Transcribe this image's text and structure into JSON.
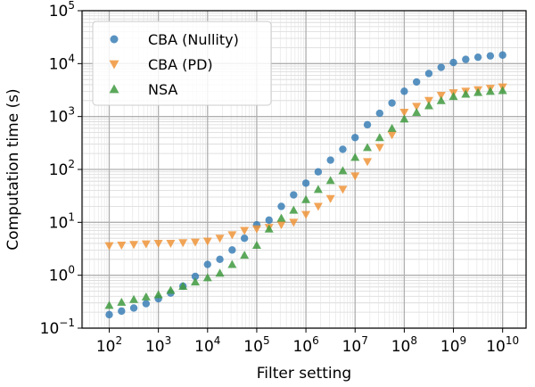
{
  "chart_data": {
    "type": "scatter",
    "title": "",
    "xlabel": "Filter setting",
    "ylabel": "Computation time (s)",
    "xscale": "log",
    "yscale": "log",
    "xlim": [
      28,
      30000000000
    ],
    "ylim": [
      0.1,
      100000
    ],
    "grid": true,
    "legend_position": "top-left",
    "x_ticks": [
      {
        "base": "10",
        "exp": "2",
        "value": 100
      },
      {
        "base": "10",
        "exp": "3",
        "value": 1000
      },
      {
        "base": "10",
        "exp": "4",
        "value": 10000
      },
      {
        "base": "10",
        "exp": "5",
        "value": 100000
      },
      {
        "base": "10",
        "exp": "6",
        "value": 1000000
      },
      {
        "base": "10",
        "exp": "7",
        "value": 10000000
      },
      {
        "base": "10",
        "exp": "8",
        "value": 100000000
      },
      {
        "base": "10",
        "exp": "9",
        "value": 1000000000
      },
      {
        "base": "10",
        "exp": "10",
        "value": 10000000000
      }
    ],
    "y_ticks": [
      {
        "base": "10",
        "exp": "−1",
        "value": 0.1
      },
      {
        "base": "10",
        "exp": "0",
        "value": 1
      },
      {
        "base": "10",
        "exp": "1",
        "value": 10
      },
      {
        "base": "10",
        "exp": "2",
        "value": 100
      },
      {
        "base": "10",
        "exp": "3",
        "value": 1000
      },
      {
        "base": "10",
        "exp": "4",
        "value": 10000
      },
      {
        "base": "10",
        "exp": "5",
        "value": 100000
      }
    ],
    "x": [
      100,
      178,
      316,
      562,
      1000,
      1778,
      3162,
      5623,
      10000,
      17783,
      31623,
      56234,
      100000,
      177828,
      316228,
      562341,
      1000000,
      1778279,
      3162278,
      5623413,
      10000000,
      17782794,
      31622777,
      56234133,
      100000000,
      177827941,
      316227766,
      562341325,
      1000000000,
      1778279410,
      3162277660,
      5623413252,
      10000000000
    ],
    "series": [
      {
        "name": "CBA (Nullity)",
        "color": "#3b7fb6",
        "marker": "circle",
        "values": [
          0.18,
          0.21,
          0.24,
          0.29,
          0.36,
          0.46,
          0.62,
          0.95,
          1.6,
          2.0,
          3.0,
          5.0,
          9.0,
          11.0,
          20.0,
          33.0,
          55.0,
          90.0,
          150.0,
          240.0,
          400.0,
          700.0,
          1150.0,
          1800.0,
          3000.0,
          4500.0,
          6500.0,
          8500.0,
          10500.0,
          12000.0,
          13200.0,
          14000.0,
          14500.0
        ]
      },
      {
        "name": "CBA (PD)",
        "color": "#f0953a",
        "marker": "triangle-down",
        "values": [
          3.6,
          3.7,
          3.8,
          3.9,
          4.0,
          4.0,
          4.1,
          4.2,
          4.4,
          5.0,
          5.8,
          7.0,
          7.5,
          8.0,
          9.0,
          10.0,
          14.0,
          20.0,
          28.0,
          42.0,
          75.0,
          140.0,
          260.0,
          450.0,
          1200.0,
          1550.0,
          2000.0,
          2500.0,
          2800.0,
          3000.0,
          3200.0,
          3400.0,
          3600.0
        ]
      },
      {
        "name": "NSA",
        "color": "#3f9a3f",
        "marker": "triangle-up",
        "values": [
          0.27,
          0.31,
          0.35,
          0.39,
          0.43,
          0.52,
          0.62,
          0.75,
          0.9,
          1.1,
          1.6,
          2.4,
          3.7,
          7.5,
          12.0,
          17.0,
          27.0,
          42.0,
          62.0,
          95.0,
          170.0,
          260.0,
          400.0,
          600.0,
          900.0,
          1200.0,
          1600.0,
          2000.0,
          2400.0,
          2650.0,
          2850.0,
          3000.0,
          3100.0
        ]
      }
    ]
  }
}
